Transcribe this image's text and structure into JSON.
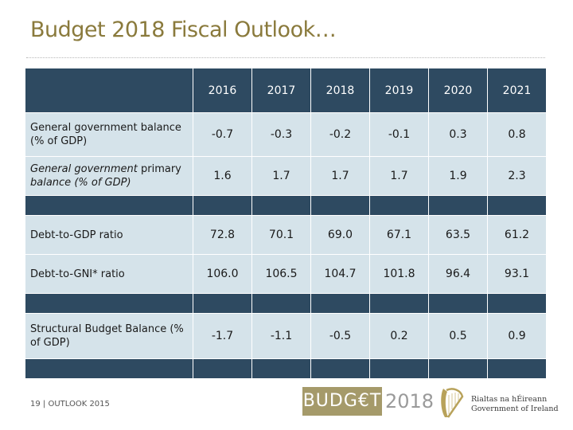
{
  "slide": {
    "title": "Budget 2018 Fiscal Outlook…",
    "footer": "19 | OUTLOOK 2015"
  },
  "table": {
    "years": [
      "2016",
      "2017",
      "2018",
      "2019",
      "2020",
      "2021"
    ],
    "rows": [
      {
        "label_a": "General government balance (% of GDP)",
        "label_b": "",
        "values": [
          "-0.7",
          "-0.3",
          "-0.2",
          "-0.1",
          "0.3",
          "0.8"
        ]
      },
      {
        "label_a": "General government",
        "label_b": "primary",
        "label_c": "balance (% of GDP)",
        "values": [
          "1.6",
          "1.7",
          "1.7",
          "1.7",
          "1.9",
          "2.3"
        ]
      },
      {
        "label_a": "Debt-to-GDP ratio",
        "values": [
          "72.8",
          "70.1",
          "69.0",
          "67.1",
          "63.5",
          "61.2"
        ]
      },
      {
        "label_a": "Debt-to-GNI* ratio",
        "values": [
          "106.0",
          "106.5",
          "104.7",
          "101.8",
          "96.4",
          "93.1"
        ]
      },
      {
        "label_a": "Structural Budget Balance (% of GDP)",
        "values": [
          "-1.7",
          "-1.1",
          "-0.5",
          "0.2",
          "0.5",
          "0.9"
        ]
      }
    ]
  },
  "branding": {
    "budget_word": "BUDG€T",
    "budget_year": "2018",
    "gov_line1": "Rialtas na hÉireann",
    "gov_line2": "Government of Ireland",
    "icon": "harp-icon"
  },
  "colors": {
    "header_bg": "#2e4a61",
    "cell_bg": "#d5e3ea",
    "title": "#8a7a3c",
    "logo_bg": "#a59a6a"
  }
}
